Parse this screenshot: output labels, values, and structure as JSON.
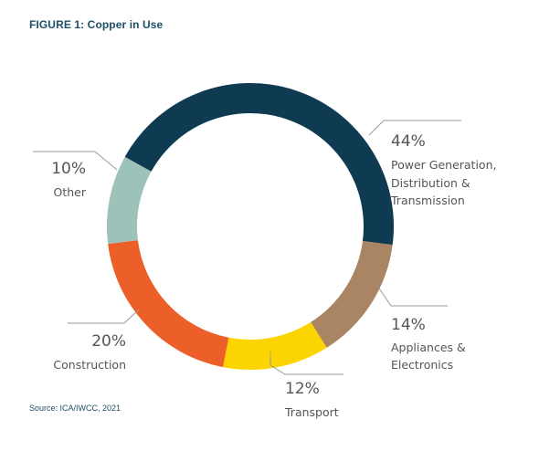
{
  "figure": {
    "title": "FIGURE 1: Copper in Use",
    "source": "Source: ICA/IWCC, 2021"
  },
  "chart_data": {
    "type": "pie",
    "variant": "donut",
    "title": "FIGURE 1: Copper in Use",
    "slices": [
      {
        "percent_label": "44%",
        "value": 44,
        "lines": [
          "Power Generation,",
          "Distribution &",
          "Transmission"
        ],
        "color": "#0e3a52"
      },
      {
        "percent_label": "14%",
        "value": 14,
        "lines": [
          "Appliances &",
          "Electronics"
        ],
        "color": "#a98564"
      },
      {
        "percent_label": "12%",
        "value": 12,
        "lines": [
          "Transport"
        ],
        "color": "#fcd500"
      },
      {
        "percent_label": "20%",
        "value": 20,
        "lines": [
          "Construction"
        ],
        "color": "#ec5f28"
      },
      {
        "percent_label": "10%",
        "value": 10,
        "lines": [
          "Other"
        ],
        "color": "#9cc2b9"
      }
    ],
    "legend": "none"
  }
}
